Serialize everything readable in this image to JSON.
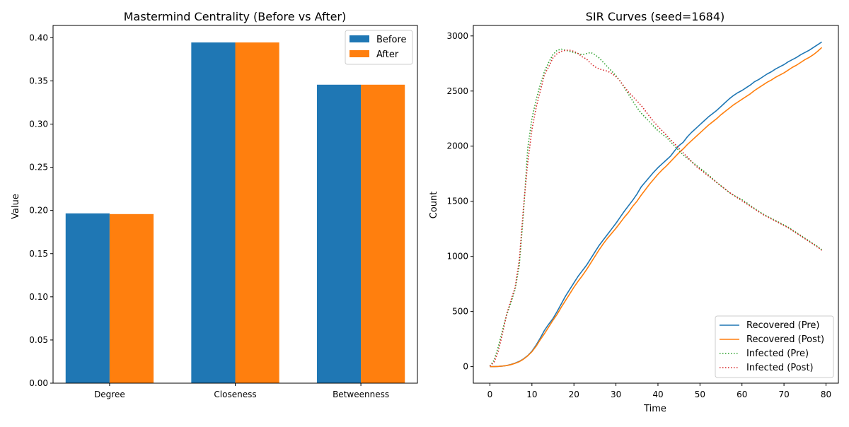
{
  "chart_data": [
    {
      "type": "bar",
      "title": "Mastermind Centrality (Before vs After)",
      "xlabel": "",
      "ylabel": "Value",
      "categories": [
        "Degree",
        "Closeness",
        "Betweenness"
      ],
      "series": [
        {
          "name": "Before",
          "color": "#1f77b4",
          "values": [
            0.1966,
            0.3945,
            0.3456
          ]
        },
        {
          "name": "After",
          "color": "#ff7f0e",
          "values": [
            0.1958,
            0.3945,
            0.3456
          ]
        }
      ],
      "ylim": [
        0,
        0.4142
      ],
      "yticks": [
        0.0,
        0.05,
        0.1,
        0.15,
        0.2,
        0.25,
        0.3,
        0.35,
        0.4
      ],
      "ytick_labels": [
        "0.00",
        "0.05",
        "0.10",
        "0.15",
        "0.20",
        "0.25",
        "0.30",
        "0.35",
        "0.40"
      ],
      "legend_position": "upper right",
      "grid": false
    },
    {
      "type": "line",
      "title": "SIR Curves (seed=1684)",
      "xlabel": "Time",
      "ylabel": "Count",
      "xlim": [
        -3.95,
        82.95
      ],
      "ylim": [
        -150,
        3095
      ],
      "xticks": [
        0,
        10,
        20,
        30,
        40,
        50,
        60,
        70,
        80
      ],
      "yticks": [
        0,
        500,
        1000,
        1500,
        2000,
        2500,
        3000
      ],
      "legend_position": "lower right",
      "grid": false,
      "series": [
        {
          "name": "Recovered (Pre)",
          "color": "#1f77b4",
          "style": "solid",
          "x": [
            0,
            1,
            2,
            3,
            4,
            5,
            6,
            7,
            8,
            9,
            10,
            11,
            12,
            13,
            14,
            15,
            16,
            17,
            18,
            19,
            20,
            21,
            22,
            23,
            24,
            25,
            26,
            27,
            28,
            29,
            30,
            31,
            32,
            33,
            34,
            35,
            36,
            37,
            38,
            39,
            40,
            41,
            42,
            43,
            44,
            45,
            46,
            47,
            48,
            49,
            50,
            51,
            52,
            53,
            54,
            55,
            56,
            57,
            58,
            59,
            60,
            61,
            62,
            63,
            64,
            65,
            66,
            67,
            68,
            69,
            70,
            71,
            72,
            73,
            74,
            75,
            76,
            77,
            78,
            79
          ],
          "y": [
            0,
            0,
            2,
            5,
            10,
            20,
            32,
            48,
            70,
            100,
            140,
            195,
            260,
            330,
            385,
            435,
            500,
            570,
            640,
            700,
            760,
            820,
            870,
            920,
            980,
            1040,
            1100,
            1150,
            1200,
            1250,
            1300,
            1355,
            1410,
            1460,
            1510,
            1565,
            1630,
            1675,
            1720,
            1765,
            1805,
            1840,
            1875,
            1910,
            1960,
            2005,
            2035,
            2085,
            2125,
            2160,
            2195,
            2230,
            2265,
            2295,
            2325,
            2360,
            2395,
            2430,
            2460,
            2485,
            2505,
            2530,
            2555,
            2585,
            2605,
            2630,
            2655,
            2675,
            2700,
            2720,
            2740,
            2765,
            2785,
            2805,
            2830,
            2850,
            2870,
            2895,
            2920,
            2945
          ]
        },
        {
          "name": "Recovered (Post)",
          "color": "#ff7f0e",
          "style": "solid",
          "x": [
            0,
            1,
            2,
            3,
            4,
            5,
            6,
            7,
            8,
            9,
            10,
            11,
            12,
            13,
            14,
            15,
            16,
            17,
            18,
            19,
            20,
            21,
            22,
            23,
            24,
            25,
            26,
            27,
            28,
            29,
            30,
            31,
            32,
            33,
            34,
            35,
            36,
            37,
            38,
            39,
            40,
            41,
            42,
            43,
            44,
            45,
            46,
            47,
            48,
            49,
            50,
            51,
            52,
            53,
            54,
            55,
            56,
            57,
            58,
            59,
            60,
            61,
            62,
            63,
            64,
            65,
            66,
            67,
            68,
            69,
            70,
            71,
            72,
            73,
            74,
            75,
            76,
            77,
            78,
            79
          ],
          "y": [
            0,
            0,
            2,
            5,
            10,
            18,
            30,
            45,
            68,
            98,
            135,
            185,
            245,
            300,
            360,
            420,
            475,
            540,
            600,
            660,
            720,
            775,
            825,
            880,
            940,
            1000,
            1060,
            1115,
            1165,
            1210,
            1255,
            1305,
            1355,
            1400,
            1455,
            1500,
            1555,
            1605,
            1655,
            1700,
            1745,
            1785,
            1820,
            1860,
            1900,
            1940,
            1975,
            2015,
            2050,
            2085,
            2120,
            2155,
            2190,
            2220,
            2250,
            2285,
            2315,
            2345,
            2375,
            2400,
            2425,
            2450,
            2475,
            2505,
            2530,
            2555,
            2580,
            2600,
            2625,
            2645,
            2665,
            2690,
            2715,
            2735,
            2760,
            2785,
            2805,
            2830,
            2860,
            2895
          ]
        },
        {
          "name": "Infected (Pre)",
          "color": "#2ca02c",
          "style": "dotted",
          "x": [
            0,
            1,
            2,
            3,
            4,
            5,
            6,
            7,
            8,
            9,
            10,
            11,
            12,
            13,
            14,
            15,
            16,
            17,
            18,
            19,
            20,
            21,
            22,
            23,
            24,
            25,
            26,
            27,
            28,
            29,
            30,
            31,
            32,
            33,
            34,
            35,
            36,
            37,
            38,
            39,
            40,
            41,
            42,
            43,
            44,
            45,
            46,
            47,
            48,
            49,
            50,
            51,
            52,
            53,
            54,
            55,
            56,
            57,
            58,
            59,
            60,
            61,
            62,
            63,
            64,
            65,
            66,
            67,
            68,
            69,
            70,
            71,
            72,
            73,
            74,
            75,
            76,
            77,
            78,
            79
          ],
          "y": [
            5,
            60,
            180,
            330,
            470,
            580,
            700,
            920,
            1400,
            1980,
            2250,
            2420,
            2560,
            2680,
            2760,
            2830,
            2870,
            2880,
            2870,
            2860,
            2850,
            2840,
            2830,
            2840,
            2850,
            2830,
            2800,
            2760,
            2720,
            2680,
            2640,
            2590,
            2530,
            2470,
            2410,
            2350,
            2300,
            2260,
            2220,
            2180,
            2140,
            2110,
            2080,
            2040,
            2000,
            1960,
            1920,
            1890,
            1860,
            1830,
            1800,
            1770,
            1740,
            1705,
            1670,
            1640,
            1610,
            1580,
            1555,
            1535,
            1515,
            1490,
            1460,
            1435,
            1410,
            1385,
            1365,
            1345,
            1325,
            1305,
            1285,
            1265,
            1240,
            1215,
            1190,
            1165,
            1140,
            1115,
            1090,
            1060
          ]
        },
        {
          "name": "Infected (Post)",
          "color": "#d62728",
          "style": "dotted",
          "x": [
            0,
            1,
            2,
            3,
            4,
            5,
            6,
            7,
            8,
            9,
            10,
            11,
            12,
            13,
            14,
            15,
            16,
            17,
            18,
            19,
            20,
            21,
            22,
            23,
            24,
            25,
            26,
            27,
            28,
            29,
            30,
            31,
            32,
            33,
            34,
            35,
            36,
            37,
            38,
            39,
            40,
            41,
            42,
            43,
            44,
            45,
            46,
            47,
            48,
            49,
            50,
            51,
            52,
            53,
            54,
            55,
            56,
            57,
            58,
            59,
            60,
            61,
            62,
            63,
            64,
            65,
            66,
            67,
            68,
            69,
            70,
            71,
            72,
            73,
            74,
            75,
            76,
            77,
            78,
            79
          ],
          "y": [
            5,
            40,
            140,
            300,
            480,
            600,
            720,
            970,
            1450,
            1850,
            2150,
            2350,
            2500,
            2650,
            2720,
            2800,
            2840,
            2860,
            2870,
            2870,
            2860,
            2840,
            2810,
            2790,
            2750,
            2720,
            2700,
            2690,
            2680,
            2660,
            2630,
            2590,
            2540,
            2490,
            2450,
            2410,
            2370,
            2320,
            2270,
            2220,
            2180,
            2140,
            2100,
            2060,
            2020,
            1980,
            1940,
            1900,
            1860,
            1820,
            1790,
            1760,
            1730,
            1700,
            1670,
            1640,
            1610,
            1580,
            1555,
            1530,
            1505,
            1480,
            1455,
            1430,
            1405,
            1380,
            1360,
            1340,
            1320,
            1300,
            1280,
            1260,
            1235,
            1210,
            1185,
            1160,
            1135,
            1110,
            1085,
            1055
          ]
        }
      ]
    }
  ]
}
